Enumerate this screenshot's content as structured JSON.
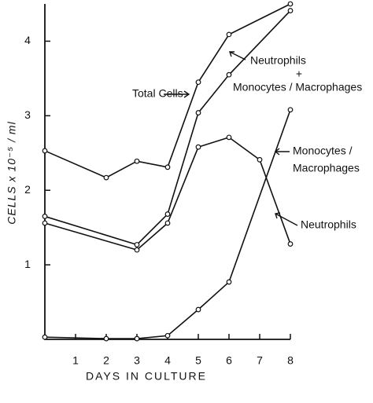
{
  "chart_data": {
    "type": "line",
    "xlabel": "DAYS IN CULTURE",
    "ylabel": "CELLS x 10⁻⁵ / ml",
    "xlim": [
      0,
      8
    ],
    "xticks": [
      1,
      2,
      3,
      4,
      5,
      6,
      7,
      8
    ],
    "ylim": [
      0,
      4.5
    ],
    "yticks": [
      1,
      2,
      3,
      4
    ],
    "color": "#111111",
    "series": [
      {
        "x": [
          0,
          2,
          3,
          4,
          5,
          6,
          8
        ],
        "values": [
          2.53,
          2.17,
          2.39,
          2.31,
          3.45,
          4.09,
          4.5
        ]
      },
      {
        "x": [
          0,
          3,
          4,
          5,
          6,
          8
        ],
        "values": [
          1.65,
          1.27,
          1.68,
          3.04,
          3.55,
          4.41
        ]
      },
      {
        "x": [
          0,
          3,
          4,
          5,
          6,
          7,
          8
        ],
        "values": [
          1.56,
          1.2,
          1.56,
          2.58,
          2.71,
          2.41,
          1.28
        ]
      },
      {
        "x": [
          0,
          2,
          3,
          4,
          5,
          6,
          8
        ],
        "values": [
          0.03,
          0.01,
          0.01,
          0.05,
          0.4,
          0.77,
          3.08
        ]
      }
    ],
    "annotations": [
      {
        "text": "Total Cells"
      },
      {
        "text": "Neutrophils"
      },
      {
        "text": "+"
      },
      {
        "text": "Monocytes / Macrophages"
      },
      {
        "text": "Monocytes /"
      },
      {
        "text": "Macrophages"
      },
      {
        "text": "Neutrophils"
      }
    ]
  }
}
